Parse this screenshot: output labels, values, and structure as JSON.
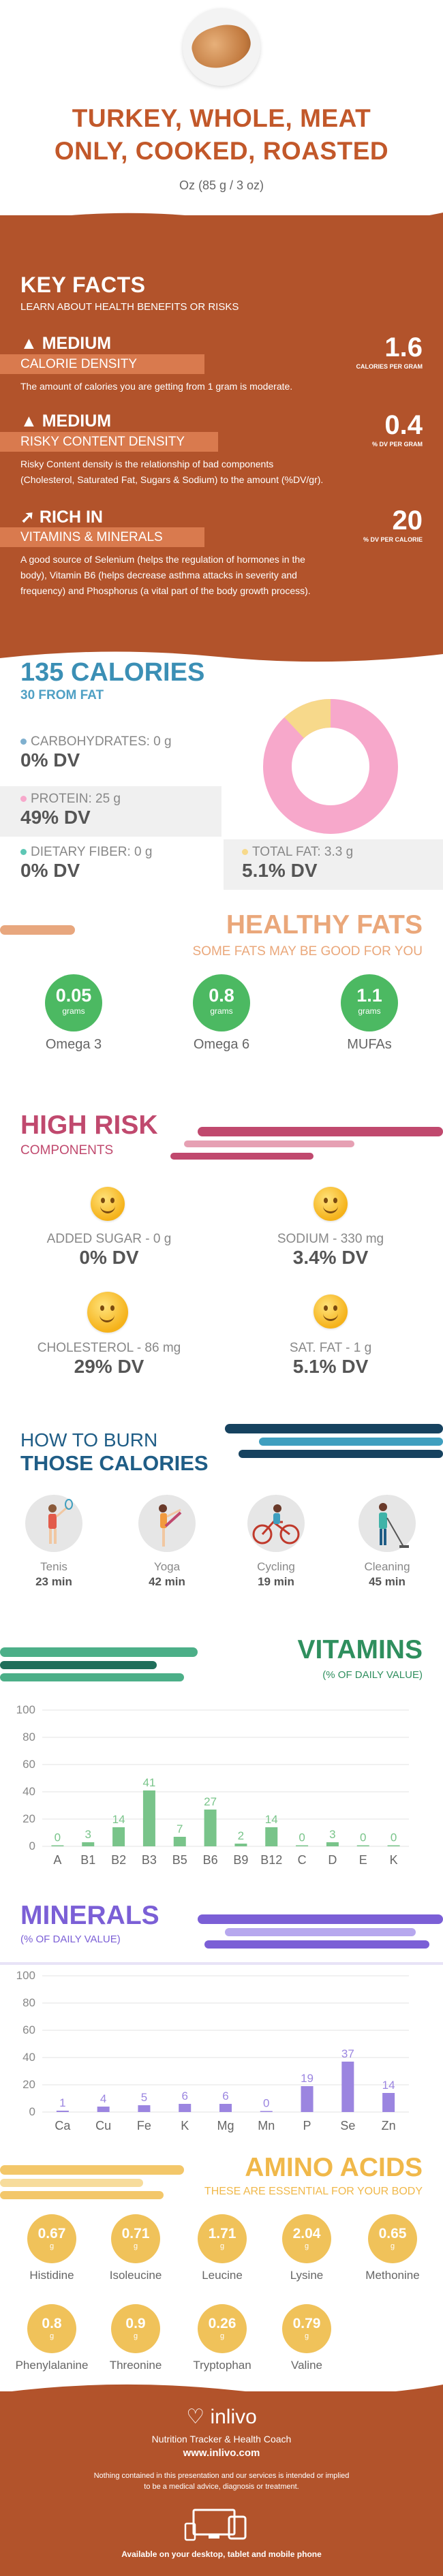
{
  "header": {
    "title_line1": "TURKEY, WHOLE, MEAT",
    "title_line2": "ONLY, COOKED, ROASTED",
    "serving": "Oz (85 g / 3 oz)"
  },
  "key_facts": {
    "title": "KEY FACTS",
    "subtitle": "LEARN ABOUT HEALTH BENEFITS OR RISKS",
    "items": [
      {
        "level": "MEDIUM",
        "band": "CALORIE DENSITY",
        "value": "1.6",
        "unit": "CALORIES PER GRAM",
        "text1": "The amount of calories you are getting from 1 gram is moderate.",
        "text2": "",
        "text3": "",
        "text4": ""
      },
      {
        "level": "MEDIUM",
        "band": "RISKY CONTENT DENSITY",
        "value": "0.4",
        "unit": "% DV PER GRAM",
        "text1": "Risky Content density is the relationship of bad components",
        "text2": "(Cholesterol, Saturated Fat, Sugars & Sodium) to the amount (%DV/gr).",
        "text3": "",
        "text4": ""
      },
      {
        "level": "RICH  IN",
        "band": "VITAMINS & MINERALS",
        "value": "20",
        "unit": "% DV PER CALORIE",
        "text1": "A good source of Selenium (helps the regulation of hormones in the",
        "text2": "body), Vitamin B6 (helps decrease asthma attacks in severity and",
        "text3": "frequency) and Phosphorus (a vital part of the body growth process).",
        "text4": ""
      }
    ]
  },
  "calories": {
    "title": "135 CALORIES",
    "subtitle": "30 FROM FAT",
    "carbs_label": "CARBOHYDRATES: 0 g",
    "carbs_dv": "0% DV",
    "protein_label": "PROTEIN: 25 g",
    "protein_dv": "49% DV",
    "fiber_label": "DIETARY FIBER: 0 g",
    "fiber_dv": "0% DV",
    "fat_label": "TOTAL FAT: 3.3 g",
    "fat_dv": "5.1% DV",
    "colors": {
      "carbs": "#7fb0cf",
      "protein": "#f7a8cb",
      "fiber": "#5ec7b5",
      "fat": "#f7d98b"
    },
    "donut": {
      "protein_fraction": 0.88,
      "fat_fraction": 0.12
    }
  },
  "healthy_fats": {
    "title": "HEALTHY FATS",
    "subtitle": "SOME FATS MAY BE GOOD FOR YOU",
    "items": [
      {
        "value": "0.05",
        "unit": "grams",
        "label": "Omega 3"
      },
      {
        "value": "0.8",
        "unit": "grams",
        "label": "Omega 6"
      },
      {
        "value": "1.1",
        "unit": "grams",
        "label": "MUFAs"
      }
    ]
  },
  "high_risk": {
    "title": "HIGH RISK",
    "subtitle": "COMPONENTS",
    "items": [
      {
        "label": "ADDED SUGAR - 0 g",
        "dv": "0% DV"
      },
      {
        "label": "SODIUM - 330 mg",
        "dv": "3.4% DV"
      },
      {
        "label": "CHOLESTEROL - 86 mg",
        "dv": "29% DV"
      },
      {
        "label": "SAT. FAT - 1 g",
        "dv": "5.1% DV"
      }
    ]
  },
  "burn": {
    "title1": "HOW TO BURN",
    "title2": "THOSE CALORIES",
    "items": [
      {
        "label": "Tenis",
        "minutes": "23 min"
      },
      {
        "label": "Yoga",
        "minutes": "42 min"
      },
      {
        "label": "Cycling",
        "minutes": "19 min"
      },
      {
        "label": "Cleaning",
        "minutes": "45 min"
      }
    ]
  },
  "vitamins": {
    "title": "VITAMINS",
    "subtitle": "(% OF DAILY VALUE)"
  },
  "minerals": {
    "title": "MINERALS",
    "subtitle": "(% OF DAILY VALUE)"
  },
  "amino": {
    "title": "AMINO ACIDS",
    "subtitle": "THESE ARE ESSENTIAL FOR YOUR BODY",
    "items": [
      {
        "value": "0.67",
        "unit": "g",
        "label": "Histidine"
      },
      {
        "value": "0.71",
        "unit": "g",
        "label": "Isoleucine"
      },
      {
        "value": "1.71",
        "unit": "g",
        "label": "Leucine"
      },
      {
        "value": "2.04",
        "unit": "g",
        "label": "Lysine"
      },
      {
        "value": "0.65",
        "unit": "g",
        "label": "Methonine"
      },
      {
        "value": "0.8",
        "unit": "g",
        "label": "Phenylalanine"
      },
      {
        "value": "0.9",
        "unit": "g",
        "label": "Threonine"
      },
      {
        "value": "0.26",
        "unit": "g",
        "label": "Tryptophan"
      },
      {
        "value": "0.79",
        "unit": "g",
        "label": "Valine"
      }
    ]
  },
  "footer": {
    "brand": "inlivo",
    "tagline": "Nutrition Tracker & Health Coach",
    "url": "www.inlivo.com",
    "disclaimer1": "Nothing contained in this presentation and our services is intended or implied",
    "disclaimer2": "to be a medical advice, diagnosis or treatment.",
    "available": "Available on your desktop, tablet and mobile phone"
  },
  "chart_data": [
    {
      "type": "bar",
      "categories": [
        "A",
        "B1",
        "B2",
        "B3",
        "B5",
        "B6",
        "B9",
        "B12",
        "C",
        "D",
        "E",
        "K"
      ],
      "values": [
        0,
        3,
        14,
        41,
        7,
        27,
        2,
        14,
        0,
        3,
        0,
        0
      ],
      "ylim": [
        0,
        100
      ],
      "yticks": [
        0,
        20,
        40,
        60,
        80,
        100
      ],
      "color": "#79c48a",
      "grid": true
    },
    {
      "type": "bar",
      "categories": [
        "Ca",
        "Cu",
        "Fe",
        "K",
        "Mg",
        "Mn",
        "P",
        "Se",
        "Zn"
      ],
      "values": [
        1,
        4,
        5,
        6,
        6,
        0,
        19,
        37,
        14
      ],
      "ylim": [
        0,
        100
      ],
      "yticks": [
        0,
        20,
        40,
        60,
        80,
        100
      ],
      "color": "#9b85e0",
      "grid": true
    }
  ]
}
